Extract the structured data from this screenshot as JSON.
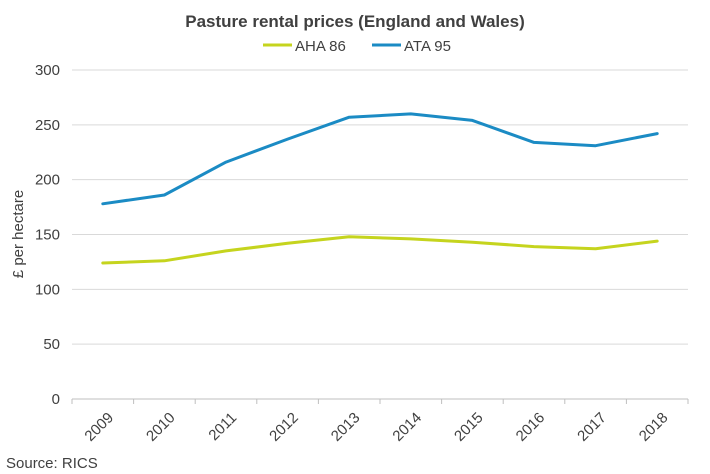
{
  "chart_data": {
    "type": "line",
    "title": "Pasture rental prices (England and Wales)",
    "xlabel": "",
    "ylabel": "£ per hectare",
    "categories": [
      "2009",
      "2010",
      "2011",
      "2012",
      "2013",
      "2014",
      "2015",
      "2016",
      "2017",
      "2018"
    ],
    "series": [
      {
        "name": "AHA 86",
        "color": "#c5d41e",
        "values": [
          124,
          126,
          135,
          142,
          148,
          146,
          143,
          139,
          137,
          144
        ]
      },
      {
        "name": "ATA 95",
        "color": "#1b8bc4",
        "values": [
          178,
          186,
          216,
          237,
          257,
          260,
          254,
          234,
          231,
          242
        ]
      }
    ],
    "ylim": [
      0,
      300
    ],
    "yticks": [
      0,
      50,
      100,
      150,
      200,
      250,
      300
    ],
    "grid": true,
    "legend_position": "top-center"
  },
  "source": "Source:  RICS"
}
